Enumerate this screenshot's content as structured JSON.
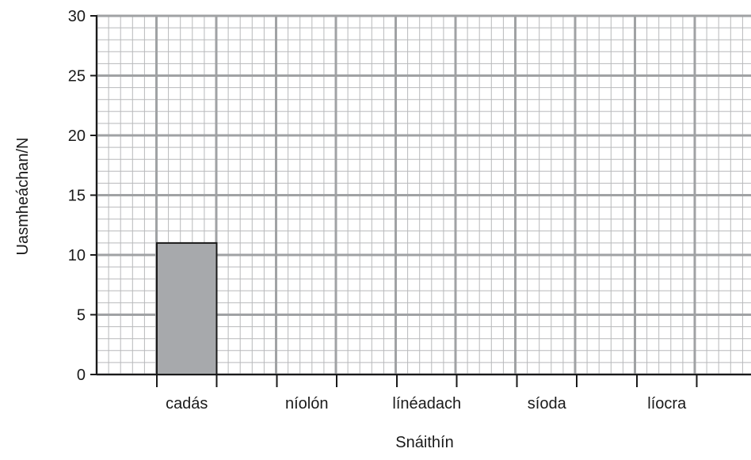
{
  "chart_data": {
    "type": "bar",
    "title": "",
    "xlabel": "Snáithín",
    "ylabel": "Uasmheáchan/N",
    "categories": [
      "cadás",
      "níolón",
      "línéadach",
      "síoda",
      "líocra"
    ],
    "values": [
      11,
      null,
      null,
      null,
      null
    ],
    "ylim": [
      0,
      30
    ],
    "yticks": [
      0,
      5,
      10,
      15,
      20,
      25,
      30
    ],
    "grid": true,
    "bar_color": "#a7a9ac",
    "grid_minor_color": "#b8b9bb",
    "grid_major_color": "#a0a2a4",
    "axis_color": "#1a1a1a"
  }
}
